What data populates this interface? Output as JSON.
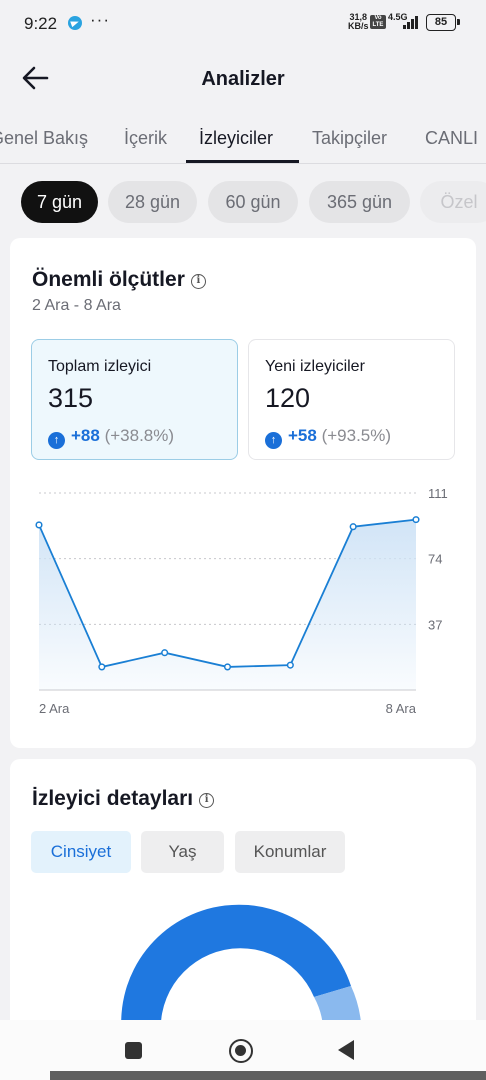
{
  "status_bar": {
    "time": "9:22",
    "more": "···",
    "net_speed_value": "31,8",
    "net_speed_unit": "KB/s",
    "volte_top": "Vo",
    "volte_bottom": "LTE",
    "network": "4.5G",
    "battery": "85"
  },
  "header": {
    "title": "Analizler"
  },
  "tabs": [
    {
      "label": "Genel Bakış"
    },
    {
      "label": "İçerik"
    },
    {
      "label": "İzleyiciler",
      "active": true
    },
    {
      "label": "Takipçiler"
    },
    {
      "label": "CANLI"
    }
  ],
  "ranges": [
    {
      "label": "7 gün",
      "active": true
    },
    {
      "label": "28 gün"
    },
    {
      "label": "60 gün"
    },
    {
      "label": "365 gün"
    },
    {
      "label": "Özel"
    }
  ],
  "key_metrics": {
    "title": "Önemli ölçütler",
    "info": "i",
    "date_range": "2 Ara - 8 Ara",
    "cards": [
      {
        "label": "Toplam izleyici",
        "value": "315",
        "change_abs": "+88",
        "change_pct": "(+38.8%)",
        "selected": true
      },
      {
        "label": "Yeni izleyiciler",
        "value": "120",
        "change_abs": "+58",
        "change_pct": "(+93.5%)"
      }
    ],
    "up_arrow": "↑"
  },
  "chart_data": {
    "type": "area",
    "x_labels": [
      "2 Ara",
      "8 Ara"
    ],
    "x": [
      "2 Ara",
      "3 Ara",
      "4 Ara",
      "5 Ara",
      "6 Ara",
      "7 Ara",
      "8 Ara"
    ],
    "y": [
      93,
      13,
      21,
      13,
      14,
      92,
      96
    ],
    "y_ticks": [
      "111",
      "74",
      "37"
    ],
    "ylim": [
      0,
      111
    ],
    "grid": true,
    "line_color": "#1a7fd4",
    "fill_color": "#cfe3f6"
  },
  "audience_details": {
    "title": "İzleyici detayları",
    "info": "i",
    "filters": [
      {
        "label": "Cinsiyet",
        "active": true
      },
      {
        "label": "Yaş"
      },
      {
        "label": "Konumlar"
      }
    ],
    "donut_colors": {
      "primary": "#1f78e0",
      "secondary": "#8ab9ee"
    }
  }
}
